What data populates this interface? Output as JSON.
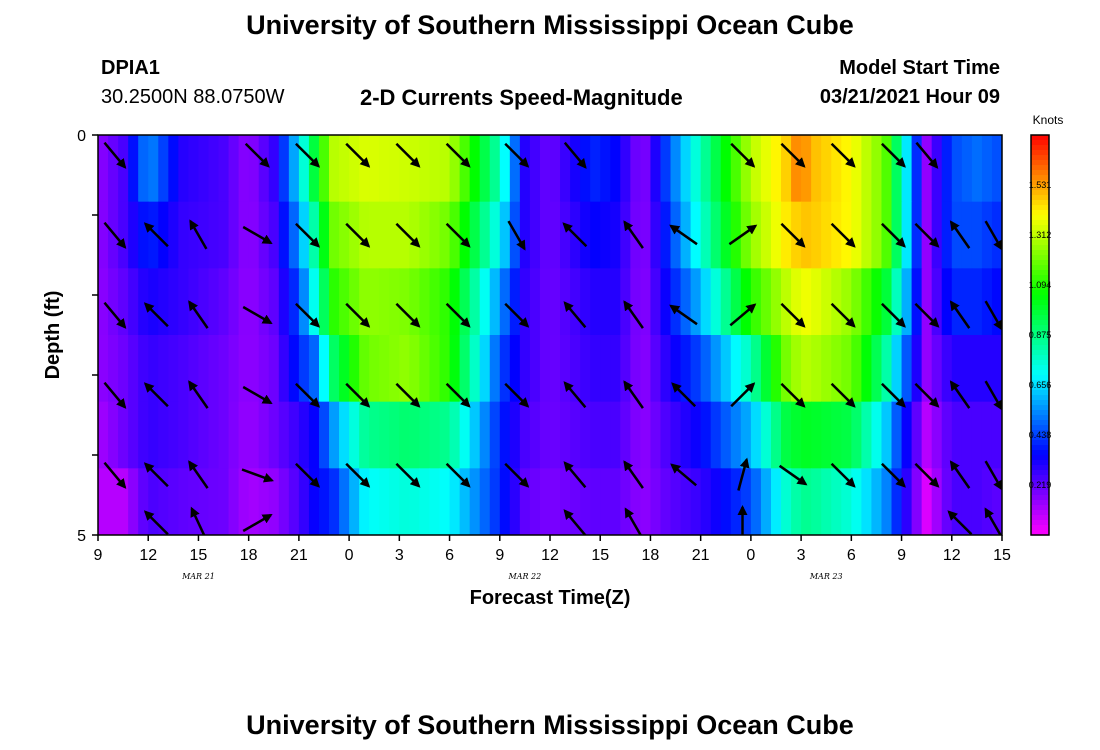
{
  "header": {
    "title": "University of Southern Mississippi Ocean Cube",
    "station_id": "DPIA1",
    "station_coords": "30.2500N 88.0750W",
    "subtitle": "2-D Currents Speed-Magnitude",
    "model_start_label": "Model Start Time",
    "model_start_value": "03/21/2021 Hour 09"
  },
  "footer": {
    "title": "University of Southern Mississippi Ocean Cube"
  },
  "chart_data": {
    "type": "heatmap",
    "xlabel": "Forecast Time(Z)",
    "ylabel": "Depth (ft)",
    "colorbar_label": "Knots",
    "colorbar_ticks": [
      1.531,
      1.312,
      1.094,
      0.875,
      0.656,
      0.438,
      0.219
    ],
    "colorbar_range": [
      0,
      1.75
    ],
    "x_ticks": [
      "9",
      "12",
      "15",
      "18",
      "21",
      "0",
      "3",
      "6",
      "9",
      "12",
      "15",
      "18",
      "21",
      "0",
      "3",
      "6",
      "9",
      "12",
      "15"
    ],
    "date_labels": [
      {
        "text": "MAR  21",
        "tick_index": 2
      },
      {
        "text": "MAR  22",
        "tick_index": 8.5
      },
      {
        "text": "MAR  23",
        "tick_index": 14.5
      }
    ],
    "y_ticks": [
      "0",
      "5"
    ],
    "y_range": [
      0,
      5
    ],
    "x_range_hours": [
      0,
      54
    ],
    "depth_rows": 5,
    "speed_keyframes_hours": [
      0,
      1.5,
      3,
      5,
      7.5,
      9,
      10.5,
      12,
      13,
      14,
      16,
      18.5,
      21,
      24,
      25.5,
      27,
      29.5,
      31,
      32.5,
      34,
      36,
      39,
      41,
      42,
      42.5,
      45,
      47,
      48,
      49.5,
      51,
      52.5,
      54
    ],
    "speed_keyframes": [
      [
        0.15,
        0.25,
        0.55,
        0.3,
        0.25,
        0.15,
        0.28,
        0.65,
        1.0,
        1.3,
        1.35,
        1.33,
        1.3,
        0.8,
        0.3,
        0.2,
        0.4,
        0.35,
        0.15,
        0.45,
        0.8,
        1.3,
        1.45,
        1.6,
        1.5,
        1.4,
        1.2,
        0.8,
        0.15,
        0.45,
        0.5,
        0.45
      ],
      [
        0.15,
        0.25,
        0.4,
        0.28,
        0.25,
        0.15,
        0.25,
        0.55,
        0.85,
        1.2,
        1.3,
        1.3,
        1.2,
        0.7,
        0.3,
        0.2,
        0.35,
        0.32,
        0.15,
        0.4,
        0.75,
        1.25,
        1.42,
        1.48,
        1.48,
        1.4,
        1.2,
        0.8,
        0.15,
        0.45,
        0.45,
        0.4
      ],
      [
        0.15,
        0.22,
        0.32,
        0.28,
        0.22,
        0.15,
        0.22,
        0.45,
        0.75,
        1.1,
        1.25,
        1.22,
        1.1,
        0.55,
        0.28,
        0.2,
        0.3,
        0.3,
        0.15,
        0.35,
        0.6,
        1.1,
        1.3,
        1.38,
        1.38,
        1.25,
        1.0,
        0.7,
        0.15,
        0.4,
        0.4,
        0.35
      ],
      [
        0.15,
        0.2,
        0.28,
        0.25,
        0.2,
        0.15,
        0.2,
        0.4,
        0.5,
        0.9,
        1.2,
        1.25,
        1.1,
        0.45,
        0.28,
        0.2,
        0.28,
        0.28,
        0.15,
        0.3,
        0.45,
        0.8,
        1.2,
        1.3,
        1.3,
        1.2,
        0.85,
        0.55,
        0.15,
        0.3,
        0.3,
        0.3
      ],
      [
        0.12,
        0.2,
        0.28,
        0.25,
        0.2,
        0.14,
        0.2,
        0.28,
        0.35,
        0.55,
        0.85,
        0.9,
        0.85,
        0.4,
        0.25,
        0.2,
        0.25,
        0.25,
        0.15,
        0.25,
        0.35,
        0.6,
        0.95,
        1.0,
        1.0,
        0.95,
        0.65,
        0.4,
        0.1,
        0.25,
        0.25,
        0.25
      ],
      [
        0.1,
        0.1,
        0.25,
        0.22,
        0.2,
        0.12,
        0.15,
        0.25,
        0.35,
        0.4,
        0.7,
        0.75,
        0.7,
        0.4,
        0.22,
        0.18,
        0.22,
        0.22,
        0.15,
        0.22,
        0.28,
        0.45,
        0.75,
        0.85,
        0.85,
        0.75,
        0.55,
        0.35,
        0.05,
        0.25,
        0.25,
        0.22
      ]
    ],
    "vector_times_hours": [
      1,
      3.5,
      6,
      9.5,
      12.5,
      15.5,
      18.5,
      21.5,
      25,
      28.5,
      32,
      35,
      38.5,
      41.5,
      44.5,
      47.5,
      49.5,
      51.5,
      53.5
    ],
    "vector_depths_ft": [
      0.25,
      1.25,
      2.25,
      3.25,
      4.25,
      4.85
    ],
    "vector_angle_deg": [
      [
        -50,
        null,
        null,
        -45,
        -45,
        -45,
        -45,
        -45,
        -45,
        -50,
        null,
        null,
        -45,
        -45,
        -45,
        -45,
        -50,
        null,
        null
      ],
      [
        -50,
        135,
        120,
        -30,
        -45,
        -45,
        -45,
        -45,
        -60,
        135,
        125,
        145,
        35,
        -45,
        -45,
        -45,
        -45,
        125,
        -60
      ],
      [
        -50,
        135,
        125,
        -30,
        -45,
        -45,
        -45,
        -45,
        -45,
        130,
        125,
        145,
        40,
        -45,
        -45,
        -45,
        -45,
        125,
        -60
      ],
      [
        -50,
        135,
        125,
        -30,
        -45,
        -45,
        -45,
        -45,
        -45,
        130,
        125,
        135,
        45,
        -45,
        -45,
        -45,
        -45,
        125,
        -60
      ],
      [
        -50,
        135,
        125,
        -20,
        -45,
        -45,
        -45,
        -45,
        -45,
        130,
        125,
        140,
        75,
        -35,
        -45,
        -45,
        -45,
        125,
        -60
      ],
      [
        null,
        135,
        115,
        30,
        null,
        null,
        null,
        null,
        null,
        130,
        120,
        null,
        90,
        null,
        null,
        null,
        null,
        135,
        120
      ]
    ]
  }
}
